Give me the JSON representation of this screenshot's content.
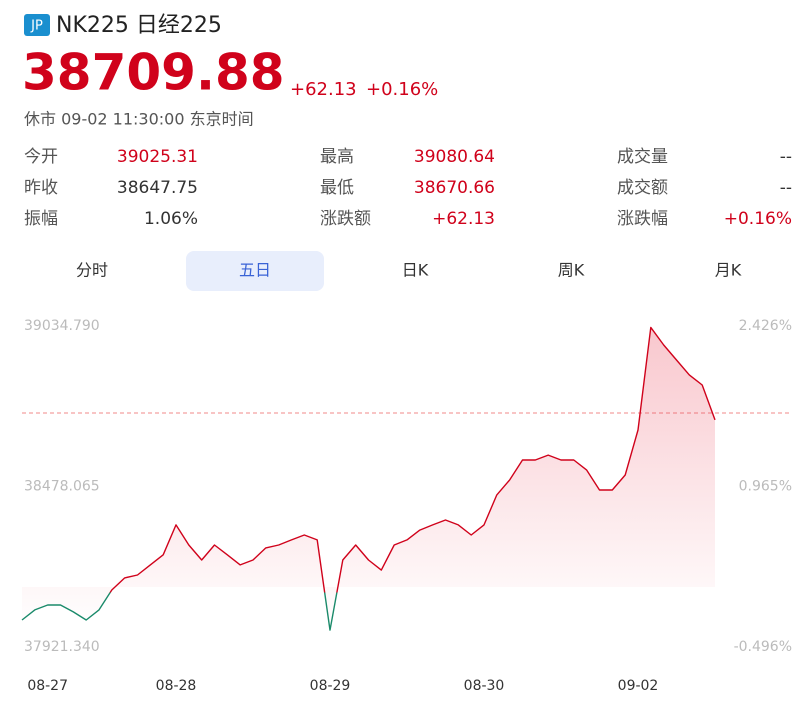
{
  "header": {
    "badge": "JP",
    "name": "NK225 日经225",
    "price": "38709.88",
    "change": "+62.13",
    "change_pct": "+0.16%",
    "status": "休市 09-02 11:30:00 东京时间"
  },
  "stats": [
    [
      {
        "label": "今开",
        "value": "39025.31"
      },
      {
        "label": "最高",
        "value": "39080.64"
      },
      {
        "label": "成交量",
        "value": "--"
      }
    ],
    [
      {
        "label": "昨收",
        "value": "38647.75"
      },
      {
        "label": "最低",
        "value": "38670.66"
      },
      {
        "label": "成交额",
        "value": "--"
      }
    ],
    [
      {
        "label": "振幅",
        "value": "1.06%"
      },
      {
        "label": "涨跌额",
        "value": "+62.13"
      },
      {
        "label": "涨跌幅",
        "value": "+0.16%"
      }
    ]
  ],
  "tabs": [
    "分时",
    "五日",
    "日K",
    "周K",
    "月K"
  ],
  "chart_data": {
    "type": "line",
    "categories": [
      null,
      null,
      "08-27",
      null,
      null,
      null,
      null,
      null,
      null,
      null,
      null,
      null,
      "08-28",
      null,
      null,
      null,
      null,
      null,
      null,
      null,
      null,
      null,
      null,
      null,
      "08-29",
      null,
      null,
      null,
      null,
      null,
      null,
      null,
      null,
      null,
      null,
      null,
      "08-30",
      null,
      null,
      null,
      null,
      null,
      null,
      null,
      null,
      null,
      null,
      null,
      "09-02",
      null,
      null,
      null,
      null,
      null,
      null
    ],
    "series": [
      {
        "color": "#d0021b",
        "values": [
          38015,
          38050,
          38067,
          38067,
          38043,
          38015,
          38050,
          38119,
          38161,
          38171,
          38206,
          38241,
          38345,
          38275,
          38223,
          38275,
          38241,
          38206,
          38223,
          38265,
          38275,
          38293,
          38310,
          38293,
          37980,
          38223,
          38275,
          38223,
          38188,
          38275,
          38293,
          38327,
          38345,
          38362,
          38345,
          38310,
          38345,
          38449,
          38501,
          38570,
          38570,
          38587,
          38570,
          38570,
          38535,
          38466,
          38466,
          38518,
          38674,
          39030,
          38969,
          38917,
          38865,
          38830,
          38709
        ]
      }
    ],
    "down_color": "#1a8a6a",
    "reference_line": 38733,
    "ylim": [
      37921.34,
      39034.79
    ],
    "yticks": [
      {
        "value": 39034.79,
        "label": "39034.790"
      },
      {
        "value": 38478.065,
        "label": "38478.065"
      },
      {
        "value": 37921.34,
        "label": "37921.340"
      }
    ],
    "y2lim": [
      -0.496,
      2.426
    ],
    "y2ticks": [
      {
        "value": 2.426,
        "label": "2.426%"
      },
      {
        "value": 0.965,
        "label": "0.965%"
      },
      {
        "value": -0.496,
        "label": "-0.496%"
      }
    ]
  }
}
